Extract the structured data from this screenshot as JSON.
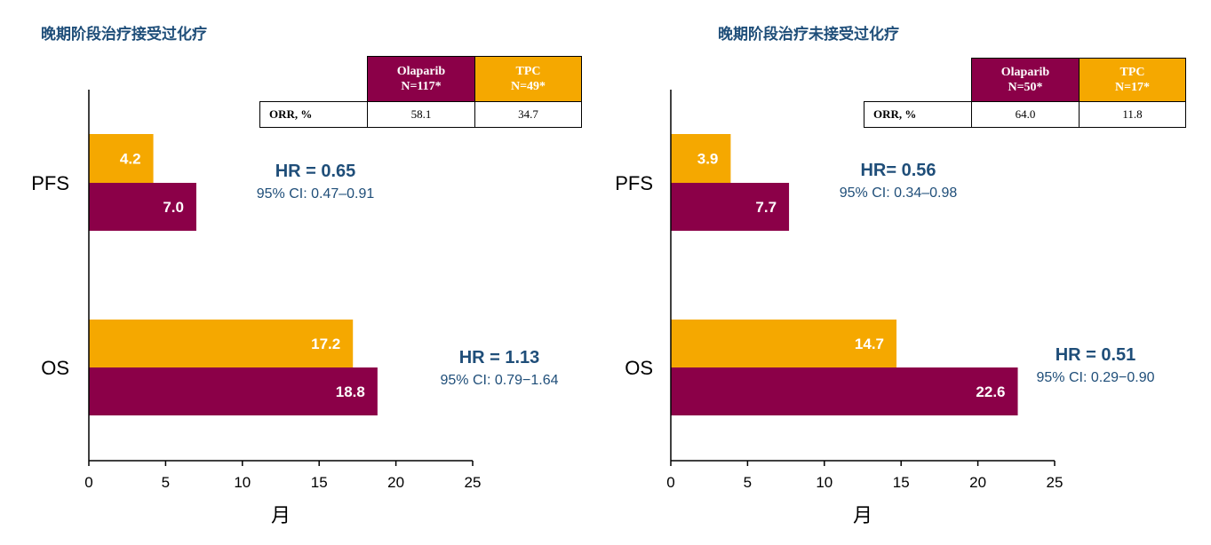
{
  "colors": {
    "olaparib": "#8b0048",
    "tpc": "#f5a800",
    "text_blue": "#1f4e79"
  },
  "chart_data": [
    {
      "type": "bar",
      "orientation": "horizontal",
      "title": "晚期阶段治疗接受过化疗",
      "categories": [
        "PFS",
        "OS"
      ],
      "series": [
        {
          "name": "TPC",
          "values": [
            4.2,
            17.2
          ]
        },
        {
          "name": "Olaparib",
          "values": [
            7.0,
            18.8
          ]
        }
      ],
      "value_labels": {
        "TPC": [
          "4.2",
          "17.2"
        ],
        "Olaparib": [
          "7.0",
          "18.8"
        ]
      },
      "xlabel": "月",
      "xlim": [
        0,
        25
      ],
      "xticks": [
        0,
        5,
        10,
        15,
        20,
        25
      ],
      "hr": [
        {
          "endpoint": "PFS",
          "hr": "HR = 0.65",
          "ci": "95% CI: 0.47–0.91"
        },
        {
          "endpoint": "OS",
          "hr": "HR = 1.13",
          "ci": "95% CI: 0.79−1.64"
        }
      ],
      "table": {
        "col1_name": "Olaparib",
        "col1_n": "N=117*",
        "col2_name": "TPC",
        "col2_n": "N=49*",
        "row_label": "ORR, %",
        "val1": "58.1",
        "val2": "34.7"
      }
    },
    {
      "type": "bar",
      "orientation": "horizontal",
      "title": "晚期阶段治疗未接受过化疗",
      "categories": [
        "PFS",
        "OS"
      ],
      "series": [
        {
          "name": "TPC",
          "values": [
            3.9,
            14.7
          ]
        },
        {
          "name": "Olaparib",
          "values": [
            7.7,
            22.6
          ]
        }
      ],
      "value_labels": {
        "TPC": [
          "3.9",
          "14.7"
        ],
        "Olaparib": [
          "7.7",
          "22.6"
        ]
      },
      "xlabel": "月",
      "xlim": [
        0,
        25
      ],
      "xticks": [
        0,
        5,
        10,
        15,
        20,
        25
      ],
      "hr": [
        {
          "endpoint": "PFS",
          "hr": "HR= 0.56",
          "ci": "95% CI: 0.34–0.98"
        },
        {
          "endpoint": "OS",
          "hr": "HR = 0.51",
          "ci": "95% CI: 0.29−0.90"
        }
      ],
      "table": {
        "col1_name": "Olaparib",
        "col1_n": "N=50*",
        "col2_name": "TPC",
        "col2_n": "N=17*",
        "row_label": "ORR, %",
        "val1": "64.0",
        "val2": "11.8"
      }
    }
  ]
}
